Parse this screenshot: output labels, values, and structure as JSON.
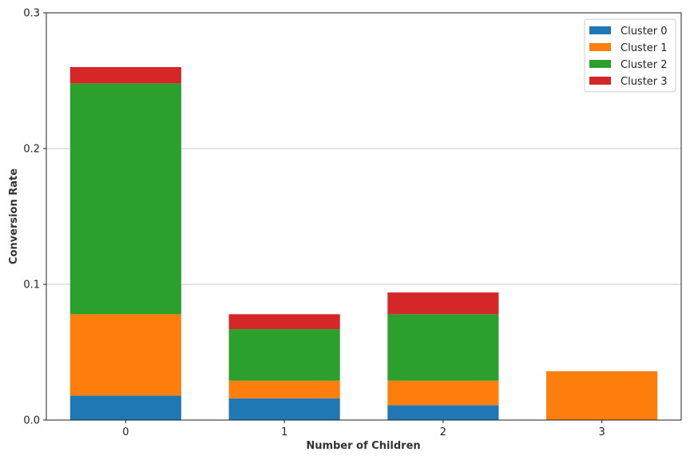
{
  "chart_data": {
    "type": "bar",
    "stacked": true,
    "categories": [
      "0",
      "1",
      "2",
      "3"
    ],
    "series": [
      {
        "name": "Cluster 0",
        "color": "#1f77b4",
        "values": [
          0.018,
          0.016,
          0.011,
          0.0
        ]
      },
      {
        "name": "Cluster 1",
        "color": "#ff7f0e",
        "values": [
          0.06,
          0.013,
          0.018,
          0.036
        ]
      },
      {
        "name": "Cluster 2",
        "color": "#2ca02c",
        "values": [
          0.17,
          0.038,
          0.049,
          0.0
        ]
      },
      {
        "name": "Cluster 3",
        "color": "#d62728",
        "values": [
          0.012,
          0.011,
          0.016,
          0.0
        ]
      }
    ],
    "title": "",
    "xlabel": "Number of Children",
    "ylabel": "Conversion Rate",
    "ylim": [
      0,
      0.3
    ],
    "yticks": [
      "0.0",
      "0.1",
      "0.2",
      "0.3"
    ],
    "grid": "y",
    "legend": "top-right"
  }
}
